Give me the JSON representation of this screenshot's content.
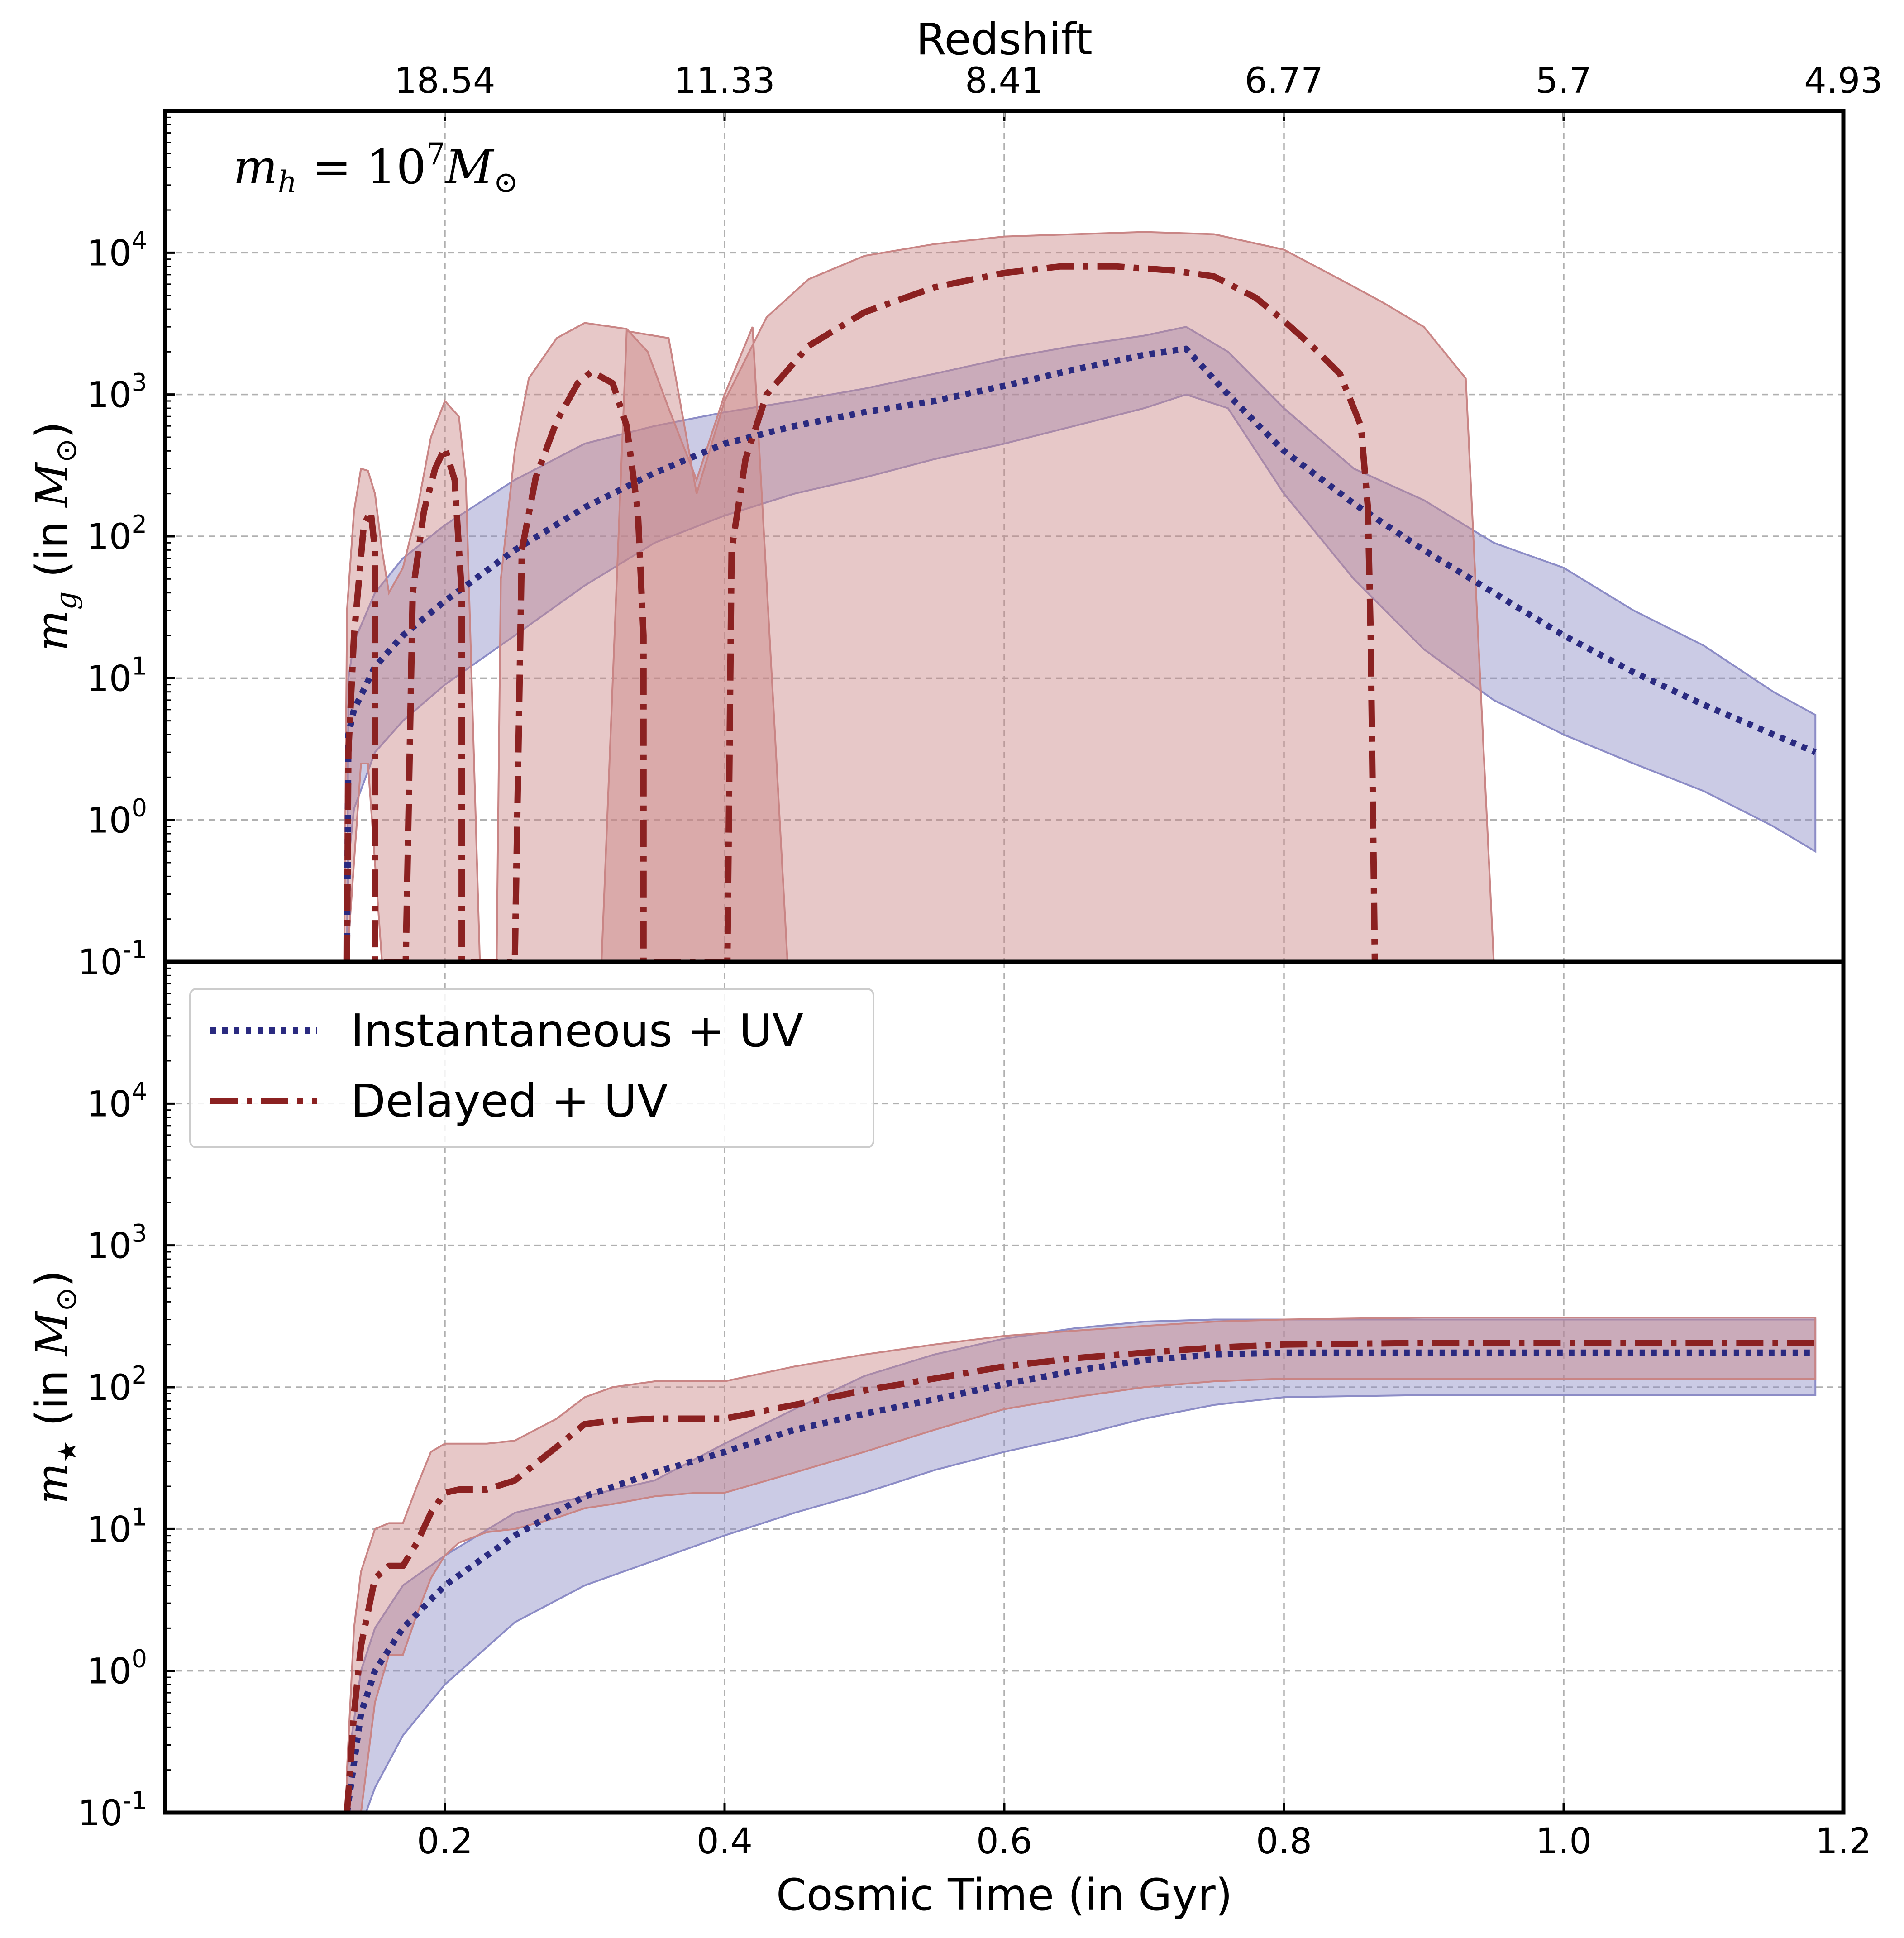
{
  "chart_data": [
    {
      "panel": "top",
      "type": "line",
      "top_axis": {
        "label": "Redshift",
        "tick_labels": [
          "18.54",
          "11.33",
          "8.41",
          "6.77",
          "5.7",
          "4.93"
        ],
        "tick_positions_gyr": [
          0.2,
          0.4,
          0.6,
          0.8,
          1.0,
          1.2
        ]
      },
      "ylabel": "m_g (in M_⊙)",
      "ylabel_parts": {
        "symbol": "m",
        "sub": "g",
        "rest": " (in ",
        "unit": "M",
        "unit_sub": "⊙",
        "close": ")"
      },
      "annotation": {
        "symbol": "m",
        "sub": "h",
        "eq": " = 10",
        "exp": "7",
        "unit": "M",
        "unit_sub": "⊙"
      },
      "yscale": "log",
      "ylim": [
        0.1,
        100000
      ],
      "xlim": [
        0,
        1.2
      ],
      "yticks": [
        {
          "value": 0.1,
          "base": "10",
          "exp": "-1"
        },
        {
          "value": 1,
          "base": "10",
          "exp": "0"
        },
        {
          "value": 10,
          "base": "10",
          "exp": "1"
        },
        {
          "value": 100,
          "base": "10",
          "exp": "2"
        },
        {
          "value": 1000,
          "base": "10",
          "exp": "3"
        },
        {
          "value": 10000,
          "base": "10",
          "exp": "4"
        }
      ],
      "grid": true,
      "series": [
        {
          "name": "Instantaneous + UV",
          "color": "#2a2a80",
          "band_color": "#8c8cc6",
          "style": "dotted",
          "x": [
            0.13,
            0.131,
            0.135,
            0.15,
            0.17,
            0.2,
            0.25,
            0.3,
            0.35,
            0.4,
            0.45,
            0.5,
            0.55,
            0.6,
            0.65,
            0.7,
            0.73,
            0.76,
            0.8,
            0.85,
            0.9,
            0.95,
            1.0,
            1.05,
            1.1,
            1.15,
            1.18
          ],
          "y": [
            0.1,
            4.0,
            6.0,
            12,
            20,
            35,
            80,
            160,
            280,
            450,
            600,
            750,
            900,
            1150,
            1500,
            1900,
            2100,
            1000,
            400,
            170,
            80,
            40,
            20,
            11,
            6.5,
            4.0,
            3.0
          ],
          "lower": [
            0.1,
            0.5,
            1.2,
            3,
            5,
            9,
            20,
            45,
            90,
            140,
            200,
            260,
            350,
            450,
            600,
            800,
            1000,
            800,
            200,
            50,
            16,
            7,
            4,
            2.5,
            1.6,
            0.9,
            0.6
          ],
          "upper": [
            0.1,
            10,
            18,
            40,
            70,
            120,
            250,
            450,
            600,
            750,
            900,
            1100,
            1400,
            1800,
            2200,
            2600,
            3000,
            2000,
            800,
            300,
            180,
            90,
            60,
            30,
            17,
            8,
            5.5
          ]
        },
        {
          "name": "Delayed + UV",
          "color": "#8b2121",
          "band_color": "#c98585",
          "style": "dashdot",
          "x": [
            0.13,
            0.131,
            0.135,
            0.142,
            0.147,
            0.15,
            0.15,
            0.172,
            0.177,
            0.185,
            0.193,
            0.2,
            0.207,
            0.212,
            0.212,
            0.25,
            0.255,
            0.265,
            0.28,
            0.295,
            0.305,
            0.32,
            0.33,
            0.338,
            0.342,
            0.342,
            0.402,
            0.405,
            0.415,
            0.43,
            0.46,
            0.5,
            0.55,
            0.6,
            0.64,
            0.68,
            0.72,
            0.75,
            0.78,
            0.8,
            0.82,
            0.84,
            0.855,
            0.86,
            0.862,
            0.865
          ],
          "y": [
            0.1,
            3.0,
            20,
            120,
            150,
            80,
            0.1,
            0.1,
            40,
            150,
            300,
            420,
            250,
            40,
            0.1,
            0.1,
            80,
            260,
            650,
            1200,
            1450,
            1200,
            600,
            150,
            20,
            0.1,
            0.1,
            80,
            350,
            1000,
            2200,
            3800,
            5700,
            7200,
            8000,
            8000,
            7500,
            6800,
            4800,
            3300,
            2200,
            1400,
            600,
            160,
            20,
            0.1
          ],
          "lower": [
            0.1,
            0.1,
            0.1,
            0.1,
            0.1,
            0.1,
            0.1,
            0.1,
            0.1,
            0.1,
            0.1,
            0.1,
            0.1,
            0.1,
            0.1,
            0.1,
            0.1,
            0.1,
            0.1,
            0.1,
            0.1,
            0.1,
            0.1,
            0.1,
            0.1,
            0.1,
            0.1,
            0.1,
            0.1,
            0.1,
            0.1,
            0.1,
            0.1,
            0.1,
            0.1,
            0.1,
            0.1,
            0.1,
            0.1,
            0.1,
            0.1,
            0.1,
            0.1,
            0.1,
            0.1,
            0.1
          ],
          "upper": [
            0.1,
            20,
            100,
            280,
            300,
            200,
            0.1,
            0.1,
            150,
            450,
            700,
            900,
            700,
            200,
            0.1,
            0.1,
            500,
            1300,
            2500,
            3000,
            3200,
            3000,
            2300,
            1200,
            700,
            0.1,
            0.1,
            1500,
            3500,
            6000,
            9000,
            11000,
            12000,
            13000,
            13500,
            14000,
            14000,
            13000,
            11000,
            8000,
            6500,
            5000,
            4000,
            3500,
            3000,
            0.1
          ],
          "band_segments": [
            {
              "x": [
                0.128,
                0.13,
                0.135,
                0.14,
                0.145,
                0.15,
                0.155,
                0.16,
                0.17,
                0.18,
                0.19,
                0.2,
                0.21,
                0.215,
                0.225
              ],
              "lower": [
                0.1,
                0.1,
                0.5,
                2.5,
                2.5,
                0.5,
                0.1,
                0.1,
                0.1,
                0.1,
                0.1,
                0.1,
                0.1,
                0.1,
                0.1
              ],
              "upper": [
                0.1,
                30,
                150,
                300,
                290,
                200,
                80,
                40,
                60,
                150,
                500,
                900,
                700,
                250,
                0.1
              ]
            },
            {
              "x": [
                0.237,
                0.24,
                0.25,
                0.26,
                0.28,
                0.3,
                0.33,
                0.345,
                0.36,
                0.38,
                0.4,
                0.42,
                0.445
              ],
              "lower": [
                0.1,
                0.1,
                0.1,
                0.1,
                0.1,
                0.1,
                0.1,
                0.1,
                0.1,
                0.1,
                0.1,
                0.1,
                0.1
              ],
              "upper": [
                0.1,
                50,
                400,
                1300,
                2500,
                3200,
                2900,
                2000,
                800,
                250,
                1000,
                3000,
                0.1
              ]
            },
            {
              "x": [
                0.312,
                0.33,
                0.36,
                0.38,
                0.4,
                0.43,
                0.46,
                0.5,
                0.55,
                0.6,
                0.65,
                0.7,
                0.75,
                0.8,
                0.84,
                0.87,
                0.9,
                0.93,
                0.95
              ],
              "lower": [
                0.1,
                0.1,
                0.1,
                0.1,
                0.1,
                0.1,
                0.1,
                0.1,
                0.1,
                0.1,
                0.1,
                0.1,
                0.1,
                0.1,
                0.1,
                0.1,
                0.1,
                0.1,
                0.1
              ],
              "upper": [
                0.1,
                2800,
                2500,
                200,
                900,
                3500,
                6500,
                9500,
                11500,
                13000,
                13500,
                14000,
                13500,
                10500,
                6500,
                4500,
                3000,
                1300,
                0.1
              ]
            }
          ]
        }
      ]
    },
    {
      "panel": "bottom",
      "type": "line",
      "xlabel": "Cosmic Time (in Gyr)",
      "xticks": [
        {
          "value": 0.2,
          "label": "0.2"
        },
        {
          "value": 0.4,
          "label": "0.4"
        },
        {
          "value": 0.6,
          "label": "0.6"
        },
        {
          "value": 0.8,
          "label": "0.8"
        },
        {
          "value": 1.0,
          "label": "1.0"
        },
        {
          "value": 1.2,
          "label": "1.2"
        }
      ],
      "ylabel": "m_★ (in M_⊙)",
      "ylabel_parts": {
        "symbol": "m",
        "sub": "★",
        "rest": " (in ",
        "unit": "M",
        "unit_sub": "⊙",
        "close": ")"
      },
      "yscale": "log",
      "ylim": [
        0.1,
        100000
      ],
      "xlim": [
        0,
        1.2
      ],
      "yticks": [
        {
          "value": 0.1,
          "base": "10",
          "exp": "-1"
        },
        {
          "value": 1,
          "base": "10",
          "exp": "0"
        },
        {
          "value": 10,
          "base": "10",
          "exp": "1"
        },
        {
          "value": 100,
          "base": "10",
          "exp": "2"
        },
        {
          "value": 1000,
          "base": "10",
          "exp": "3"
        },
        {
          "value": 10000,
          "base": "10",
          "exp": "4"
        }
      ],
      "grid": true,
      "legend": {
        "placement": "upper-left",
        "entries": [
          "Instantaneous + UV",
          "Delayed + UV"
        ]
      },
      "series": [
        {
          "name": "Instantaneous + UV",
          "color": "#2a2a80",
          "band_color": "#8c8cc6",
          "style": "dotted",
          "x": [
            0.13,
            0.14,
            0.15,
            0.17,
            0.2,
            0.25,
            0.3,
            0.35,
            0.4,
            0.45,
            0.5,
            0.55,
            0.6,
            0.65,
            0.7,
            0.75,
            0.8,
            0.9,
            1.0,
            1.1,
            1.18
          ],
          "y": [
            0.1,
            0.5,
            1.0,
            2.0,
            4.0,
            9.0,
            17,
            25,
            35,
            50,
            65,
            82,
            105,
            130,
            155,
            170,
            175,
            175,
            175,
            175,
            175
          ],
          "lower": [
            0.05,
            0.08,
            0.15,
            0.35,
            0.8,
            2.2,
            4.0,
            6.0,
            9.0,
            13,
            18,
            26,
            35,
            45,
            60,
            75,
            85,
            88,
            88,
            88,
            88
          ],
          "upper": [
            0.2,
            1.0,
            2.0,
            4.0,
            6.5,
            13,
            17,
            22,
            40,
            70,
            120,
            170,
            220,
            260,
            290,
            300,
            300,
            300,
            300,
            300,
            300
          ]
        },
        {
          "name": "Delayed + UV",
          "color": "#8b2121",
          "band_color": "#c98585",
          "style": "dashdot",
          "x": [
            0.13,
            0.135,
            0.14,
            0.15,
            0.16,
            0.17,
            0.18,
            0.19,
            0.2,
            0.21,
            0.23,
            0.25,
            0.28,
            0.3,
            0.32,
            0.35,
            0.38,
            0.4,
            0.45,
            0.5,
            0.55,
            0.6,
            0.65,
            0.7,
            0.75,
            0.8,
            0.9,
            1.0,
            1.1,
            1.18
          ],
          "y": [
            0.1,
            0.5,
            1.5,
            4.5,
            5.5,
            5.5,
            8.0,
            13,
            18,
            19,
            19,
            22,
            38,
            55,
            58,
            60,
            60,
            60,
            75,
            95,
            115,
            140,
            160,
            175,
            190,
            200,
            205,
            205,
            205,
            205
          ],
          "lower": [
            0.05,
            0.06,
            0.1,
            0.6,
            1.3,
            1.3,
            2.5,
            4.5,
            6.5,
            8.0,
            9.5,
            10,
            12,
            14,
            15,
            17,
            18,
            18,
            25,
            35,
            50,
            70,
            85,
            100,
            110,
            115,
            115,
            115,
            115,
            115
          ],
          "upper": [
            0.2,
            2.0,
            5.0,
            10,
            11,
            11,
            20,
            35,
            40,
            40,
            40,
            42,
            60,
            85,
            100,
            110,
            110,
            110,
            140,
            170,
            200,
            230,
            250,
            270,
            290,
            300,
            310,
            310,
            310,
            310
          ]
        }
      ]
    }
  ]
}
